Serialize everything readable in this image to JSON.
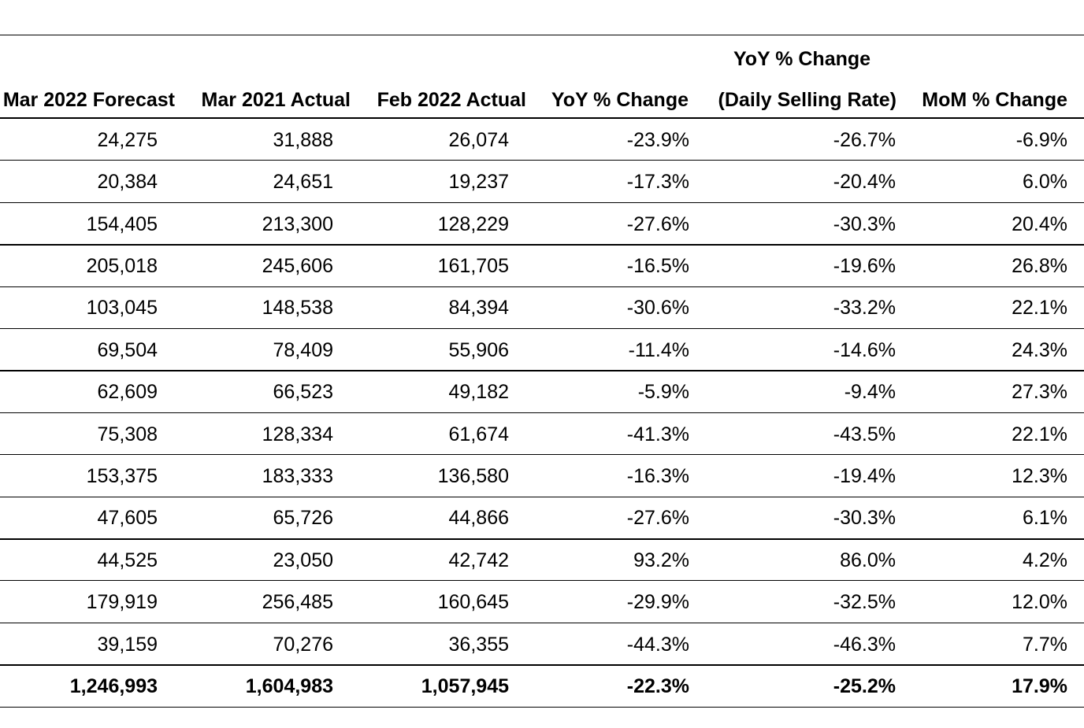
{
  "table": {
    "header_top": {
      "yoy_daily": "YoY % Change"
    },
    "headers": [
      "Mar 2022 Forecast",
      "Mar 2021 Actual",
      "Feb 2022 Actual",
      "YoY % Change",
      "(Daily Selling Rate)",
      "MoM % Change"
    ],
    "rows": [
      [
        "24,275",
        "31,888",
        "26,074",
        "-23.9%",
        "-26.7%",
        "-6.9%"
      ],
      [
        "20,384",
        "24,651",
        "19,237",
        "-17.3%",
        "-20.4%",
        "6.0%"
      ],
      [
        "154,405",
        "213,300",
        "128,229",
        "-27.6%",
        "-30.3%",
        "20.4%"
      ],
      [
        "205,018",
        "245,606",
        "161,705",
        "-16.5%",
        "-19.6%",
        "26.8%"
      ],
      [
        "103,045",
        "148,538",
        "84,394",
        "-30.6%",
        "-33.2%",
        "22.1%"
      ],
      [
        "69,504",
        "78,409",
        "55,906",
        "-11.4%",
        "-14.6%",
        "24.3%"
      ],
      [
        "62,609",
        "66,523",
        "49,182",
        "-5.9%",
        "-9.4%",
        "27.3%"
      ],
      [
        "75,308",
        "128,334",
        "61,674",
        "-41.3%",
        "-43.5%",
        "22.1%"
      ],
      [
        "153,375",
        "183,333",
        "136,580",
        "-16.3%",
        "-19.4%",
        "12.3%"
      ],
      [
        "47,605",
        "65,726",
        "44,866",
        "-27.6%",
        "-30.3%",
        "6.1%"
      ],
      [
        "44,525",
        "23,050",
        "42,742",
        "93.2%",
        "86.0%",
        "4.2%"
      ],
      [
        "179,919",
        "256,485",
        "160,645",
        "-29.9%",
        "-32.5%",
        "12.0%"
      ],
      [
        "39,159",
        "70,276",
        "36,355",
        "-44.3%",
        "-46.3%",
        "7.7%"
      ]
    ],
    "total": [
      "1,246,993",
      "1,604,983",
      "1,057,945",
      "-22.3%",
      "-25.2%",
      "17.9%"
    ]
  }
}
